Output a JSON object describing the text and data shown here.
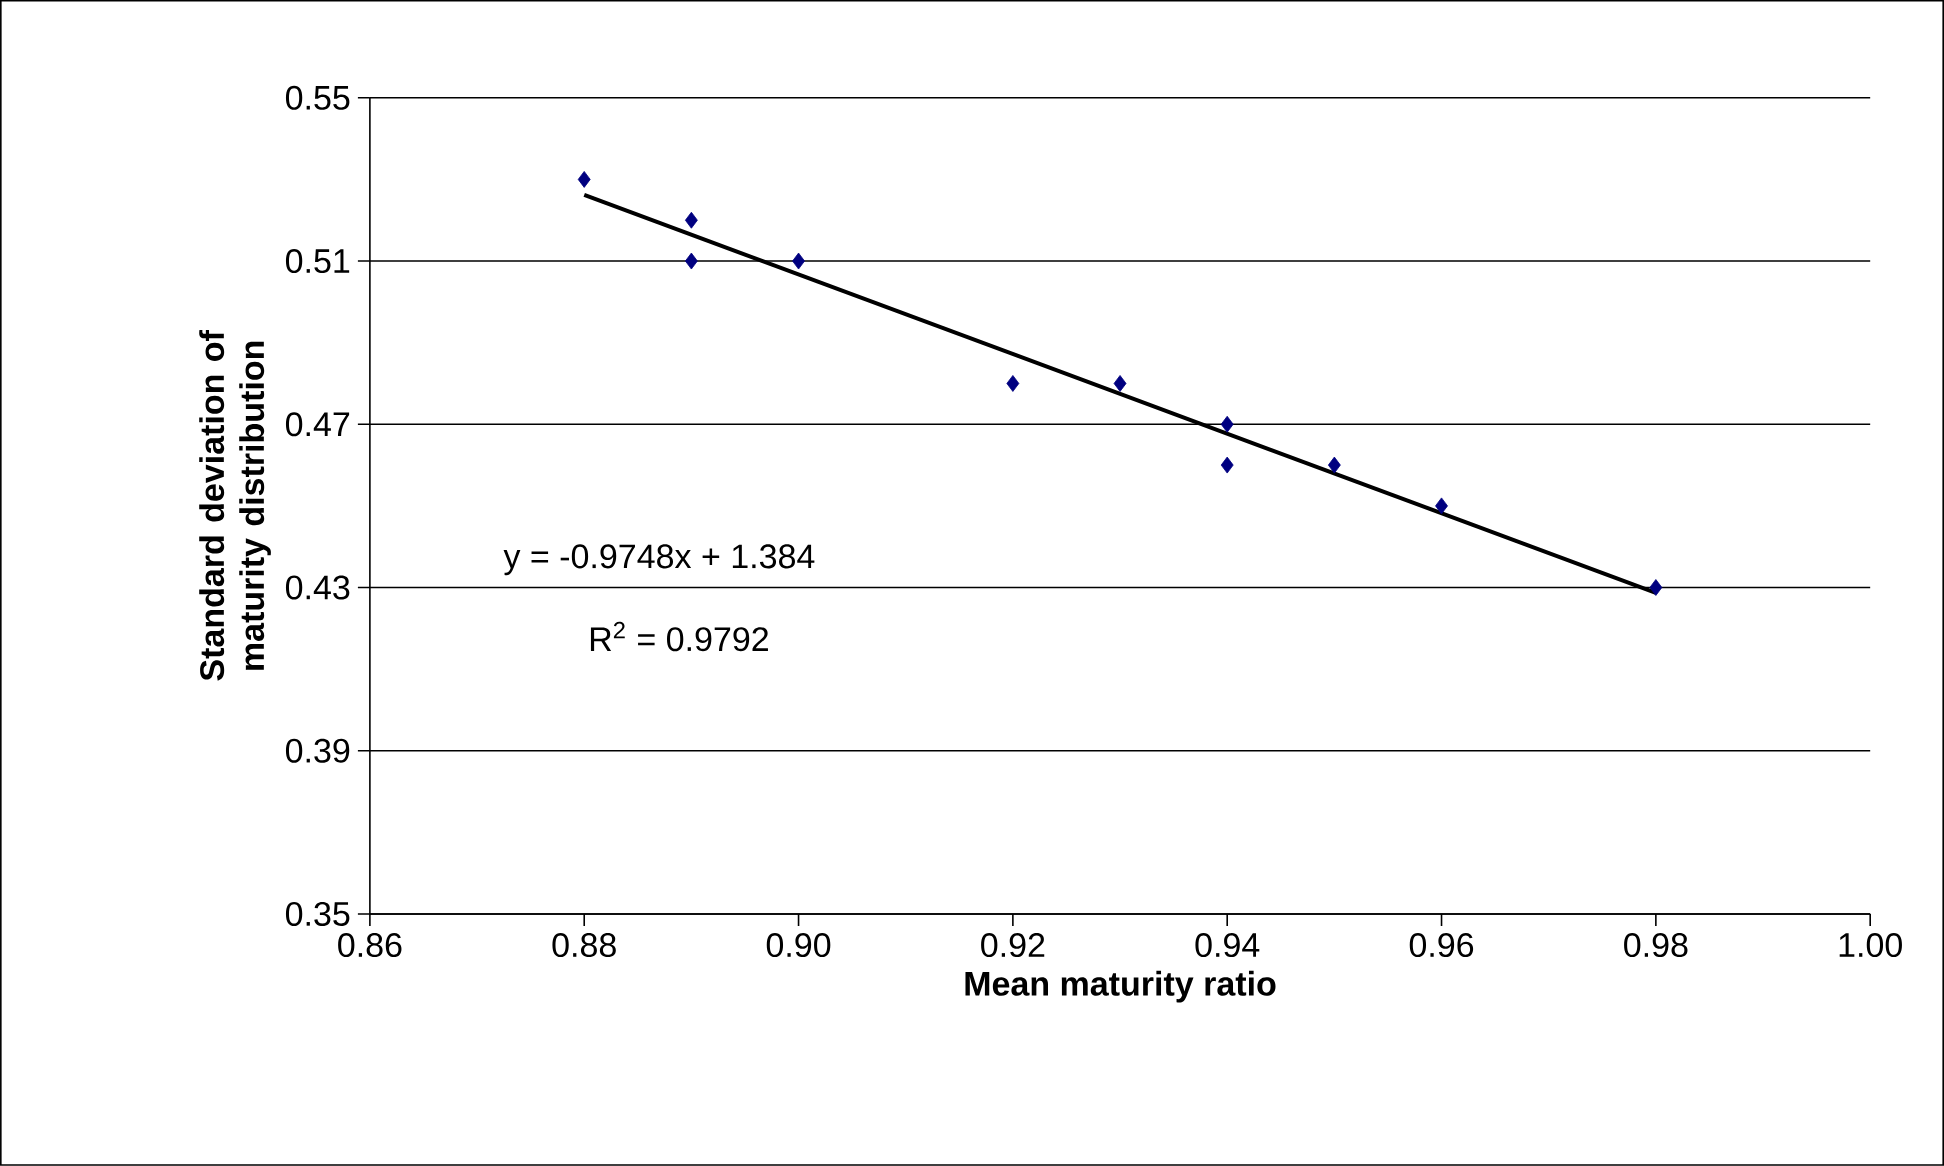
{
  "chart_data": {
    "type": "scatter",
    "xlabel": "Mean maturity ratio",
    "ylabel": "Standard deviation of maturity distribution",
    "xlim": [
      0.86,
      1.0
    ],
    "xticks": [
      0.86,
      0.88,
      {
        "value": 0.9,
        "label": "0.90"
      },
      0.92,
      0.94,
      0.96,
      0.98,
      {
        "value": 1.0,
        "label": "1.00"
      }
    ],
    "ylim": [
      0.35,
      0.55
    ],
    "yticks": [
      0.35,
      0.39,
      0.43,
      0.47,
      0.51,
      0.55
    ],
    "grid": "y",
    "series": [
      {
        "marker": "diamond",
        "color": "#000080",
        "x": [
          0.88,
          0.89,
          0.89,
          0.9,
          0.92,
          0.93,
          0.94,
          0.94,
          0.95,
          0.96,
          0.98
        ],
        "values": [
          0.53,
          0.52,
          0.51,
          0.51,
          0.48,
          0.48,
          0.47,
          0.46,
          0.46,
          0.45,
          0.43
        ]
      },
      {
        "type": "line",
        "color": "#000000",
        "x": [
          0.88,
          0.98
        ],
        "values": [
          0.5262,
          0.4287
        ]
      }
    ],
    "annotations": [
      "y = -0.9748x + 1.384",
      "R$^{2}$ = 0.9792"
    ]
  }
}
